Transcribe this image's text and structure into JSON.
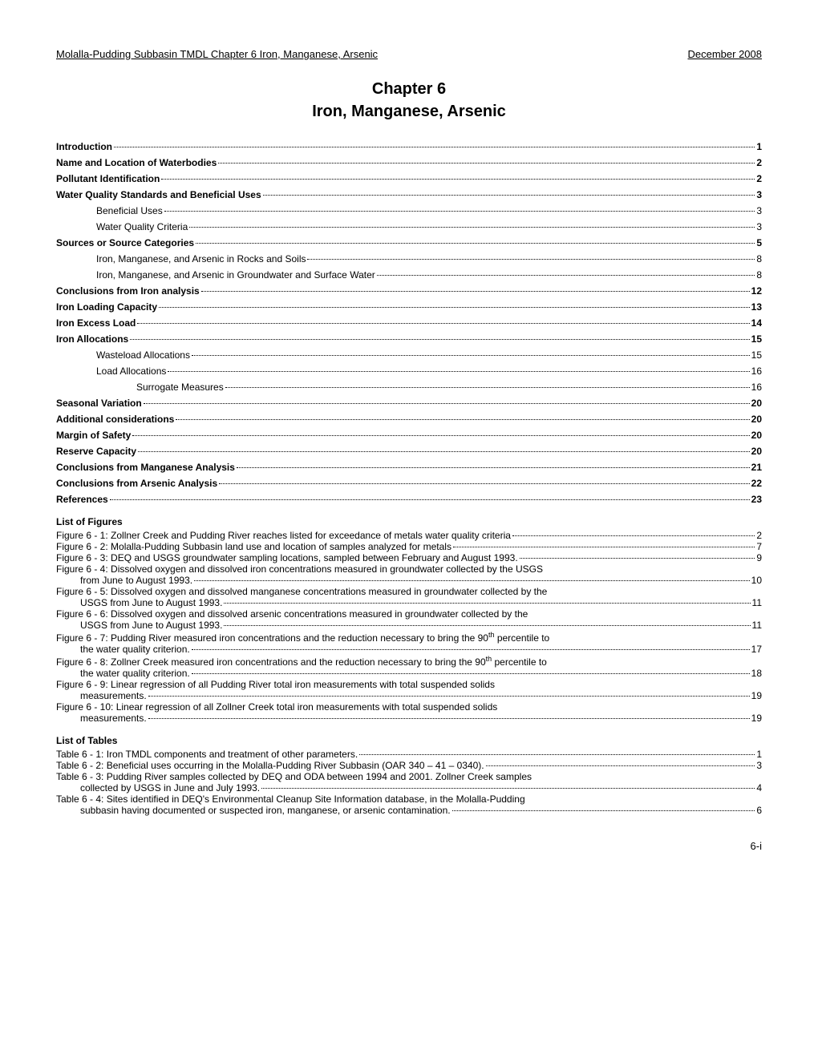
{
  "header": {
    "left": "Molalla-Pudding Subbasin TMDL   Chapter 6 Iron, Manganese, Arsenic",
    "right": "December 2008"
  },
  "title": {
    "line1": "Chapter 6",
    "line2": "Iron, Manganese, Arsenic"
  },
  "toc": [
    {
      "text": "Introduction",
      "page": "1",
      "bold": true,
      "indent": 0
    },
    {
      "text": "Name and Location of Waterbodies",
      "page": "2",
      "bold": true,
      "indent": 0
    },
    {
      "text": "Pollutant Identification",
      "page": "2",
      "bold": true,
      "indent": 0
    },
    {
      "text": "Water Quality Standards and Beneficial Uses",
      "page": "3",
      "bold": true,
      "indent": 0
    },
    {
      "text": "Beneficial Uses",
      "page": "3",
      "bold": false,
      "indent": 1
    },
    {
      "text": "Water Quality Criteria",
      "page": "3",
      "bold": false,
      "indent": 1
    },
    {
      "text": "Sources or Source Categories",
      "page": "5",
      "bold": true,
      "indent": 0
    },
    {
      "text": "Iron, Manganese, and Arsenic in Rocks and Soils",
      "page": "8",
      "bold": false,
      "indent": 1
    },
    {
      "text": "Iron, Manganese, and Arsenic in Groundwater and Surface Water",
      "page": "8",
      "bold": false,
      "indent": 1
    },
    {
      "text": "Conclusions from Iron analysis",
      "page": "12",
      "bold": true,
      "indent": 0
    },
    {
      "text": "Iron Loading Capacity",
      "page": "13",
      "bold": true,
      "indent": 0
    },
    {
      "text": "Iron Excess Load",
      "page": "14",
      "bold": true,
      "indent": 0
    },
    {
      "text": "Iron Allocations",
      "page": "15",
      "bold": true,
      "indent": 0
    },
    {
      "text": "Wasteload Allocations",
      "page": "15",
      "bold": false,
      "indent": 1
    },
    {
      "text": "Load Allocations",
      "page": "16",
      "bold": false,
      "indent": 1
    },
    {
      "text": "Surrogate Measures",
      "page": "16",
      "bold": false,
      "indent": 2
    },
    {
      "text": "Seasonal Variation",
      "page": "20",
      "bold": true,
      "indent": 0
    },
    {
      "text": "Additional considerations",
      "page": "20",
      "bold": true,
      "indent": 0
    },
    {
      "text": "Margin of Safety",
      "page": "20",
      "bold": true,
      "indent": 0
    },
    {
      "text": "Reserve Capacity",
      "page": "20",
      "bold": true,
      "indent": 0
    },
    {
      "text": "Conclusions from Manganese Analysis",
      "page": "21",
      "bold": true,
      "indent": 0
    },
    {
      "text": "Conclusions from Arsenic Analysis",
      "page": "22",
      "bold": true,
      "indent": 0
    },
    {
      "text": "References",
      "page": "23",
      "bold": true,
      "indent": 0
    }
  ],
  "figures_heading": "List of Figures",
  "figures": [
    {
      "line1": "Figure 6 - 1:  Zollner Creek and Pudding River reaches listed for exceedance of metals water quality criteria",
      "line2": "",
      "page": "2",
      "wrap": false
    },
    {
      "line1": "Figure 6 - 2:  Molalla-Pudding Subbasin land use and location of samples analyzed for metals",
      "line2": "",
      "page": "7",
      "wrap": false
    },
    {
      "line1": "Figure 6 - 3:  DEQ and USGS groundwater sampling locations, sampled between February and August 1993.",
      "line2": "",
      "page": "9",
      "wrap": false
    },
    {
      "line1": "Figure 6 - 4:  Dissolved oxygen and dissolved iron concentrations measured in groundwater collected by the USGS",
      "line2": "from June to August 1993.",
      "page": "10",
      "wrap": true
    },
    {
      "line1": "Figure 6 - 5:  Dissolved oxygen and dissolved manganese concentrations measured in groundwater collected by the",
      "line2": "USGS from June to August 1993.",
      "page": "11",
      "wrap": true
    },
    {
      "line1": "Figure 6 - 6:  Dissolved oxygen and dissolved arsenic concentrations measured in groundwater collected by the",
      "line2": "USGS from June to August 1993.",
      "page": "11",
      "wrap": true
    },
    {
      "line1": "Figure 6 - 7:  Pudding River measured iron concentrations and the reduction necessary to bring the 90th percentile to",
      "line2": "the water quality criterion.",
      "page": "17",
      "wrap": true,
      "sup": true
    },
    {
      "line1": "Figure 6 - 8:  Zollner Creek measured iron concentrations and the reduction necessary to bring the 90th percentile to",
      "line2": "the water quality criterion.",
      "page": "18",
      "wrap": true,
      "sup": true
    },
    {
      "line1": "Figure 6 - 9:  Linear regression of all Pudding River total iron measurements with total suspended solids",
      "line2": "measurements.",
      "page": "19",
      "wrap": true
    },
    {
      "line1": "Figure 6 - 10:  Linear regression of all Zollner Creek total iron measurements with total suspended solids",
      "line2": "measurements.",
      "page": "19",
      "wrap": true
    }
  ],
  "tables_heading": "List of Tables",
  "tables": [
    {
      "line1": "Table 6 - 1:  Iron TMDL components and treatment of other parameters.",
      "line2": "",
      "page": "1",
      "wrap": false
    },
    {
      "line1": "Table 6 - 2:  Beneficial uses occurring in the Molalla-Pudding River Subbasin  (OAR 340 – 41 – 0340).",
      "line2": "",
      "page": "3",
      "wrap": false
    },
    {
      "line1": "Table 6 - 3:  Pudding River samples collected by DEQ and ODA between 1994 and 2001.  Zollner Creek samples",
      "line2": "collected by USGS in June and July 1993.",
      "page": "4",
      "wrap": true
    },
    {
      "line1": "Table 6 - 4:  Sites identified in DEQ's Environmental Cleanup Site Information database, in the Molalla-Pudding",
      "line2": "subbasin having documented or suspected iron, manganese, or arsenic contamination.",
      "page": "6",
      "wrap": true
    }
  ],
  "page_number": "6-i"
}
